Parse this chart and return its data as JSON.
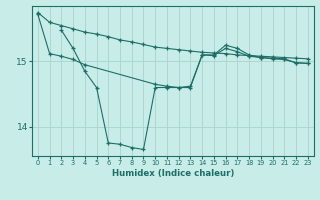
{
  "xlabel": "Humidex (Indice chaleur)",
  "background_color": "#c8ece8",
  "line_color": "#1e6e68",
  "grid_color": "#aad4ce",
  "xlim": [
    -0.5,
    23.5
  ],
  "ylim": [
    13.55,
    15.85
  ],
  "yticks": [
    14,
    15
  ],
  "xticks": [
    0,
    1,
    2,
    3,
    4,
    5,
    6,
    7,
    8,
    9,
    10,
    11,
    12,
    13,
    14,
    15,
    16,
    17,
    18,
    19,
    20,
    21,
    22,
    23
  ],
  "line1_x": [
    0,
    1,
    2,
    3,
    4,
    5,
    6,
    7,
    8,
    9,
    10,
    11,
    12,
    13,
    14,
    15,
    16,
    17,
    18,
    19,
    20,
    21,
    22,
    23
  ],
  "line1_y": [
    15.75,
    15.6,
    15.55,
    15.5,
    15.45,
    15.42,
    15.38,
    15.33,
    15.3,
    15.26,
    15.22,
    15.2,
    15.18,
    15.16,
    15.14,
    15.13,
    15.12,
    15.1,
    15.09,
    15.08,
    15.07,
    15.06,
    15.05,
    15.04
  ],
  "line2_x": [
    0,
    1,
    2,
    3,
    4,
    10,
    11,
    12,
    13,
    14,
    15,
    16,
    17,
    18,
    19,
    20,
    21,
    22,
    23
  ],
  "line2_y": [
    15.72,
    15.12,
    15.08,
    15.03,
    14.95,
    14.65,
    14.62,
    14.6,
    14.6,
    15.1,
    15.1,
    15.25,
    15.2,
    15.1,
    15.06,
    15.05,
    15.04,
    14.98,
    14.97
  ],
  "line3_x": [
    2,
    3,
    4,
    5,
    6,
    7,
    8,
    9,
    10,
    11,
    12,
    13,
    14,
    15,
    16,
    17,
    18,
    19,
    20,
    21,
    22,
    23
  ],
  "line3_y": [
    15.48,
    15.2,
    14.85,
    14.6,
    13.75,
    13.73,
    13.68,
    13.65,
    14.6,
    14.6,
    14.6,
    14.62,
    15.1,
    15.09,
    15.2,
    15.15,
    15.08,
    15.06,
    15.04,
    15.03,
    14.98,
    14.97
  ]
}
